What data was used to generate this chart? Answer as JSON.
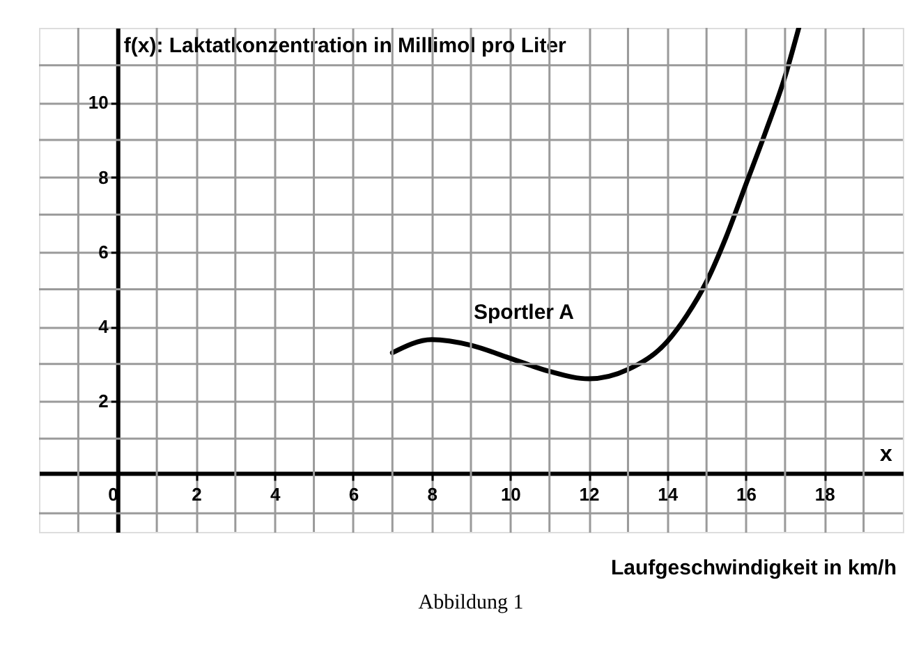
{
  "chart_data": {
    "type": "line",
    "xlabel": "Laufgeschwindigkeit in km/h",
    "ylabel": "f(x): Laktatkonzentration in Millimol pro Liter",
    "x": [
      7,
      8,
      9,
      10,
      11,
      12,
      13,
      14,
      14.5,
      15,
      15.5,
      16,
      16.5,
      17,
      17.35
    ],
    "series": [
      {
        "name": "Sportler A",
        "color": "#000000",
        "values": [
          3.3,
          3.65,
          3.5,
          3.15,
          2.8,
          2.6,
          2.85,
          3.6,
          4.3,
          5.2,
          6.4,
          7.8,
          9.2,
          10.7,
          12.0
        ]
      }
    ],
    "xlim": [
      -2,
      20
    ],
    "ylim": [
      -1.5,
      12
    ],
    "xticks": [
      {
        "value": -1,
        "label": null
      },
      0,
      {
        "value": 1,
        "label": null
      },
      2,
      {
        "value": 3,
        "label": null
      },
      4,
      {
        "value": 5,
        "label": null
      },
      6,
      {
        "value": 7,
        "label": null
      },
      8,
      {
        "value": 9,
        "label": null
      },
      10,
      {
        "value": 11,
        "label": null
      },
      12,
      {
        "value": 13,
        "label": null
      },
      14,
      {
        "value": 15,
        "label": null
      },
      16,
      {
        "value": 17,
        "label": null
      },
      18,
      {
        "value": 19,
        "label": null
      }
    ],
    "yticks": [
      {
        "value": -1,
        "label": null
      },
      {
        "value": 1,
        "label": null
      },
      2,
      {
        "value": 3,
        "label": null
      },
      4,
      {
        "value": 5,
        "label": null
      },
      6,
      {
        "value": 7,
        "label": null
      },
      8,
      {
        "value": 9,
        "label": null
      },
      10,
      {
        "value": 11,
        "label": null
      }
    ],
    "grid": true,
    "legend": false,
    "marker": "none",
    "line_style": "solid",
    "annotations": [
      "x",
      "Abbildung 1"
    ]
  }
}
